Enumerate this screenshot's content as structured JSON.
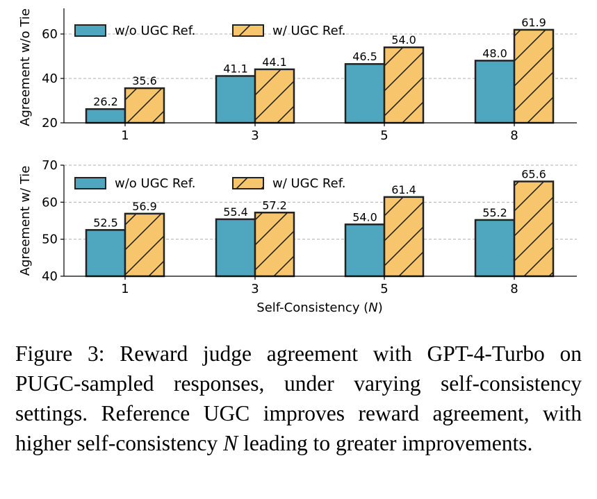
{
  "chart_data": [
    {
      "type": "bar",
      "ylabel": "Agreement w/o Tie",
      "xlabel": "",
      "ylim": [
        20,
        70
      ],
      "yticks": [
        20,
        40,
        60
      ],
      "categories": [
        "1",
        "3",
        "5",
        "8"
      ],
      "series": [
        {
          "name": "w/o UGC Ref.",
          "values": [
            26.2,
            41.1,
            46.5,
            48.0
          ],
          "labels": [
            "26.2",
            "41.1",
            "46.5",
            "48.0"
          ],
          "color": "#4ea6bf",
          "hatch": false
        },
        {
          "name": "w/ UGC Ref.",
          "values": [
            35.6,
            44.1,
            54.0,
            61.9
          ],
          "labels": [
            "35.6",
            "44.1",
            "54.0",
            "61.9"
          ],
          "color": "#f7c66c",
          "hatch": true
        }
      ],
      "legend": "top-left",
      "grid": "y-dashed"
    },
    {
      "type": "bar",
      "ylabel": "Agreement w/ Tie",
      "xlabel_prefix": "Self-Consistency (",
      "xlabel_var": "N",
      "xlabel_suffix": ")",
      "ylim": [
        40,
        70
      ],
      "yticks": [
        40,
        50,
        60,
        70
      ],
      "categories": [
        "1",
        "3",
        "5",
        "8"
      ],
      "series": [
        {
          "name": "w/o UGC Ref.",
          "values": [
            52.5,
            55.4,
            54.0,
            55.2
          ],
          "labels": [
            "52.5",
            "55.4",
            "54.0",
            "55.2"
          ],
          "color": "#4ea6bf",
          "hatch": false
        },
        {
          "name": "w/ UGC Ref.",
          "values": [
            56.9,
            57.2,
            61.4,
            65.6
          ],
          "labels": [
            "56.9",
            "57.2",
            "61.4",
            "65.6"
          ],
          "color": "#f7c66c",
          "hatch": true
        }
      ],
      "legend": "top-left",
      "grid": "y-dashed"
    }
  ],
  "caption": {
    "part1": "Figure 3: Reward judge agreement with GPT-4-Turbo on PUGC-sampled responses, under varying self-consistency settings. Reference UGC improves reward agreement, with higher self-consistency ",
    "var": "N",
    "part2": " leading to greater improvements."
  }
}
